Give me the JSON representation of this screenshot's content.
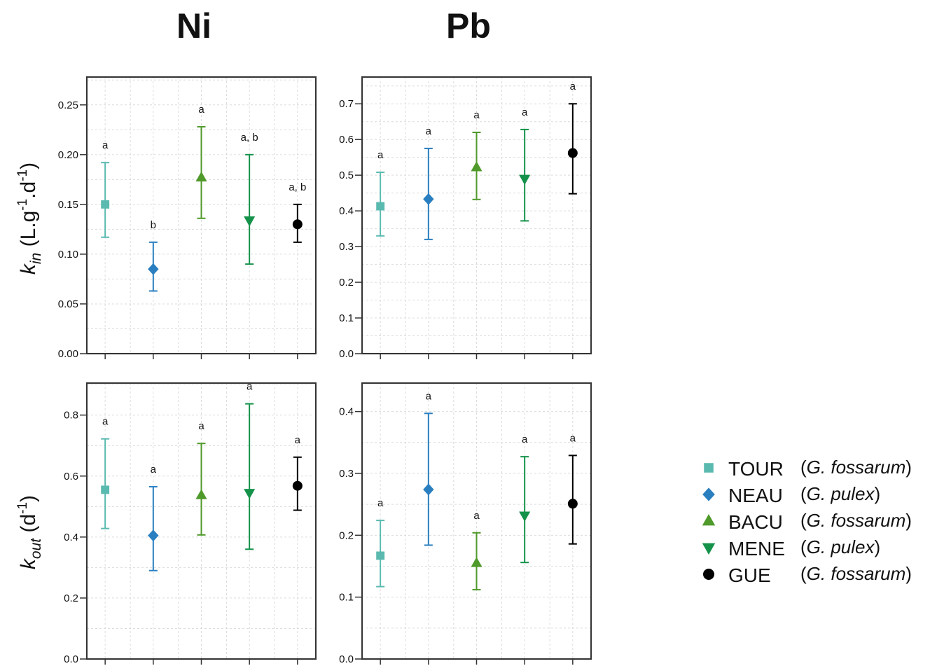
{
  "colors": {
    "TOUR": "#5bbab0",
    "NEAU": "#2a7fc0",
    "BACU": "#4f9a2a",
    "MENE": "#14924a",
    "GUE": "#000000"
  },
  "column_titles": [
    "Ni",
    "Pb"
  ],
  "row_labels": {
    "kin": {
      "sym": "k",
      "sub": "in",
      "unit_open": " (L.g",
      "sup1": "-1",
      "unit_mid": ".d",
      "sup2": "-1",
      "unit_close": ")"
    },
    "kout": {
      "sym": "k",
      "sub": "out",
      "unit_open": " (d",
      "sup1": "-1",
      "unit_close": ")"
    }
  },
  "legend": [
    {
      "site": "TOUR",
      "species": "G. fossarum",
      "marker": "square"
    },
    {
      "site": "NEAU",
      "species": "G. pulex",
      "marker": "diamond"
    },
    {
      "site": "BACU",
      "species": "G. fossarum",
      "marker": "triangle-up"
    },
    {
      "site": "MENE",
      "species": "G. pulex",
      "marker": "triangle-down"
    },
    {
      "site": "GUE",
      "species": "G. fossarum",
      "marker": "circle"
    }
  ],
  "chart_data": [
    {
      "type": "scatter",
      "panel": "Ni-kin",
      "categories": [
        "TOUR",
        "NEAU",
        "BACU",
        "MENE",
        "GUE"
      ],
      "ylim": [
        0,
        0.25
      ],
      "yticks": [
        0.0,
        0.05,
        0.1,
        0.15,
        0.2,
        0.25
      ],
      "tick_labels": [
        "0.00",
        "0.05",
        "0.10",
        "0.15",
        "0.20",
        "0.25"
      ],
      "values": [
        0.15,
        0.085,
        0.177,
        0.134,
        0.13
      ],
      "lower": [
        0.117,
        0.063,
        0.136,
        0.09,
        0.112
      ],
      "upper": [
        0.192,
        0.112,
        0.228,
        0.2,
        0.15
      ],
      "letters": [
        "a",
        "b",
        "a",
        "a, b",
        "a, b"
      ]
    },
    {
      "type": "scatter",
      "panel": "Pb-kin",
      "categories": [
        "TOUR",
        "NEAU",
        "BACU",
        "MENE",
        "GUE"
      ],
      "ylim": [
        0,
        0.7
      ],
      "yticks": [
        0.0,
        0.1,
        0.2,
        0.3,
        0.4,
        0.5,
        0.6,
        0.7
      ],
      "tick_labels": [
        "0.0",
        "0.1",
        "0.2",
        "0.3",
        "0.4",
        "0.5",
        "0.6",
        "0.7"
      ],
      "values": [
        0.413,
        0.433,
        0.522,
        0.49,
        0.562
      ],
      "lower": [
        0.33,
        0.32,
        0.432,
        0.372,
        0.448
      ],
      "upper": [
        0.508,
        0.575,
        0.62,
        0.628,
        0.7
      ],
      "letters": [
        "a",
        "a",
        "a",
        "a",
        "a"
      ]
    },
    {
      "type": "scatter",
      "panel": "Ni-kout",
      "categories": [
        "TOUR",
        "NEAU",
        "BACU",
        "MENE",
        "GUE"
      ],
      "ylim": [
        0,
        0.8
      ],
      "yticks": [
        0.0,
        0.2,
        0.4,
        0.6,
        0.8
      ],
      "tick_labels": [
        "0.0",
        "0.2",
        "0.4",
        "0.6",
        "0.8"
      ],
      "values": [
        0.555,
        0.405,
        0.537,
        0.545,
        0.568
      ],
      "lower": [
        0.428,
        0.29,
        0.407,
        0.36,
        0.488
      ],
      "upper": [
        0.722,
        0.565,
        0.707,
        0.837,
        0.662
      ],
      "letters": [
        "a",
        "a",
        "a",
        "a",
        "a"
      ]
    },
    {
      "type": "scatter",
      "panel": "Pb-kout",
      "categories": [
        "TOUR",
        "NEAU",
        "BACU",
        "MENE",
        "GUE"
      ],
      "ylim": [
        0,
        0.4
      ],
      "yticks": [
        0.0,
        0.1,
        0.2,
        0.3,
        0.4
      ],
      "tick_labels": [
        "0.0",
        "0.1",
        "0.2",
        "0.3",
        "0.4"
      ],
      "values": [
        0.167,
        0.274,
        0.155,
        0.232,
        0.251
      ],
      "lower": [
        0.117,
        0.184,
        0.112,
        0.156,
        0.186
      ],
      "upper": [
        0.224,
        0.397,
        0.204,
        0.327,
        0.329
      ],
      "letters": [
        "a",
        "a",
        "a",
        "a",
        "a"
      ]
    }
  ]
}
